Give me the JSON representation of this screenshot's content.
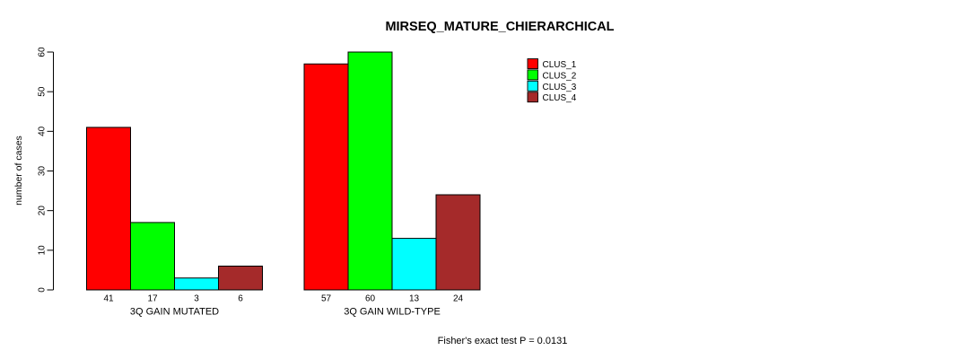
{
  "chart_data": {
    "type": "bar",
    "title": "MIRSEQ_MATURE_CHIERARCHICAL",
    "ylabel": "number of cases",
    "xlabel": "",
    "annotation": "Fisher's exact test P = 0.0131",
    "categories": [
      "3Q GAIN MUTATED",
      "3Q GAIN WILD-TYPE"
    ],
    "series": [
      {
        "name": "CLUS_1",
        "color": "#FF0000",
        "values": [
          41,
          57
        ]
      },
      {
        "name": "CLUS_2",
        "color": "#00FF00",
        "values": [
          17,
          60
        ]
      },
      {
        "name": "CLUS_3",
        "color": "#00FFFF",
        "values": [
          3,
          13
        ]
      },
      {
        "name": "CLUS_4",
        "color": "#A52A2A",
        "values": [
          6,
          24
        ]
      }
    ],
    "yticks": [
      0,
      10,
      20,
      30,
      40,
      50,
      60
    ],
    "ylim": [
      0,
      60
    ],
    "bar_value_labels_shown": true,
    "legend_position": "top-right",
    "grid": false,
    "colors": {
      "background": "#FFFFFF",
      "axis": "#000000",
      "bar_border": "#000000"
    }
  }
}
